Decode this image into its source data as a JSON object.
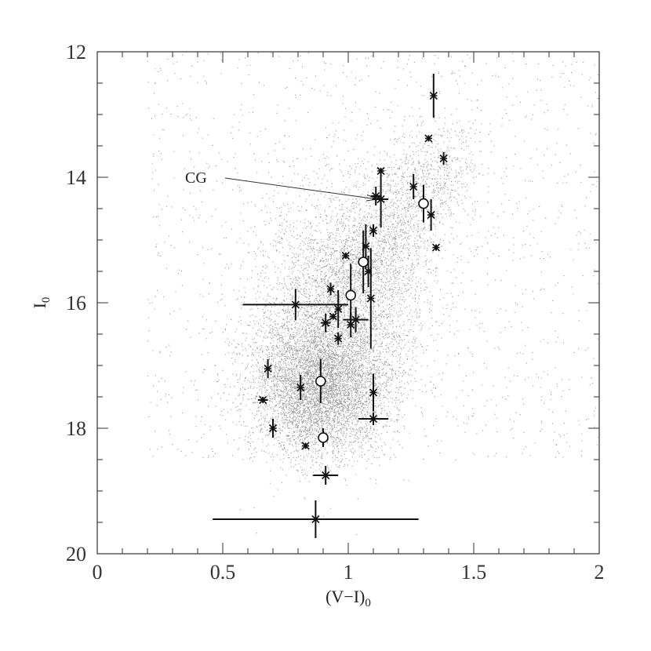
{
  "chart_data": {
    "type": "scatter",
    "title": "",
    "xlabel": "(V−I)",
    "xlabel_sub": "0",
    "ylabel": "I",
    "ylabel_sub": "0",
    "xlim": [
      0,
      2
    ],
    "ylim": [
      12,
      20
    ],
    "y_inverted": true,
    "x_tick_labels": [
      "0",
      "0.5",
      "1",
      "1.5",
      "2"
    ],
    "x_tick_values": [
      0,
      0.5,
      1,
      1.5,
      2
    ],
    "y_tick_labels": [
      "12",
      "14",
      "16",
      "18",
      "20"
    ],
    "y_tick_values": [
      12,
      14,
      16,
      18,
      20
    ],
    "grid": false,
    "annotation": {
      "text": "CG",
      "points_to": [
        1.14,
        14.35
      ]
    },
    "background_field": {
      "description_color": "#9a9a9a",
      "center": [
        0.92,
        17.4
      ]
    },
    "series": [
      {
        "marker": "cross",
        "points": [
          {
            "x": 1.34,
            "y": 12.7,
            "ex": 0.0,
            "ey": 0.35
          },
          {
            "x": 1.32,
            "y": 13.38,
            "ex": 0.0,
            "ey": 0.05
          },
          {
            "x": 1.38,
            "y": 13.7,
            "ex": 0.0,
            "ey": 0.1
          },
          {
            "x": 1.13,
            "y": 13.9,
            "ex": 0.0,
            "ey": 0.05
          },
          {
            "x": 1.26,
            "y": 14.15,
            "ex": 0.0,
            "ey": 0.2
          },
          {
            "x": 1.11,
            "y": 14.3,
            "ex": 0.02,
            "ey": 0.15
          },
          {
            "x": 1.13,
            "y": 14.35,
            "ex": 0.03,
            "ey": 0.45
          },
          {
            "x": 1.33,
            "y": 14.6,
            "ex": 0.0,
            "ey": 0.25
          },
          {
            "x": 1.1,
            "y": 14.85,
            "ex": 0.0,
            "ey": 0.1
          },
          {
            "x": 1.07,
            "y": 15.1,
            "ex": 0.0,
            "ey": 0.35
          },
          {
            "x": 1.35,
            "y": 15.12,
            "ex": 0.0,
            "ey": 0.05
          },
          {
            "x": 0.99,
            "y": 15.25,
            "ex": 0.0,
            "ey": 0.05
          },
          {
            "x": 1.08,
            "y": 15.5,
            "ex": 0.0,
            "ey": 0.25
          },
          {
            "x": 0.93,
            "y": 15.78,
            "ex": 0.0,
            "ey": 0.1
          },
          {
            "x": 1.09,
            "y": 15.93,
            "ex": 0.0,
            "ey": 0.8
          },
          {
            "x": 0.79,
            "y": 16.03,
            "ex": 0.21,
            "ey": 0.25
          },
          {
            "x": 0.96,
            "y": 16.1,
            "ex": 0.0,
            "ey": 0.3
          },
          {
            "x": 0.94,
            "y": 16.22,
            "ex": 0.0,
            "ey": 0.05
          },
          {
            "x": 0.91,
            "y": 16.32,
            "ex": 0.02,
            "ey": 0.15
          },
          {
            "x": 1.03,
            "y": 16.27,
            "ex": 0.05,
            "ey": 0.2
          },
          {
            "x": 1.01,
            "y": 16.35,
            "ex": 0.0,
            "ey": 0.2
          },
          {
            "x": 0.96,
            "y": 16.57,
            "ex": 0.0,
            "ey": 0.1
          },
          {
            "x": 0.68,
            "y": 17.05,
            "ex": 0.0,
            "ey": 0.15
          },
          {
            "x": 0.81,
            "y": 17.35,
            "ex": 0.0,
            "ey": 0.2
          },
          {
            "x": 1.1,
            "y": 17.43,
            "ex": 0.0,
            "ey": 0.3
          },
          {
            "x": 0.66,
            "y": 17.55,
            "ex": 0.02,
            "ey": 0.05
          },
          {
            "x": 1.1,
            "y": 17.85,
            "ex": 0.06,
            "ey": 0.1
          },
          {
            "x": 0.7,
            "y": 18.0,
            "ex": 0.0,
            "ey": 0.15
          },
          {
            "x": 0.83,
            "y": 18.28,
            "ex": 0.0,
            "ey": 0.05
          },
          {
            "x": 0.91,
            "y": 18.75,
            "ex": 0.05,
            "ey": 0.15
          },
          {
            "x": 0.87,
            "y": 19.45,
            "ex": 0.41,
            "ey": 0.3
          }
        ]
      },
      {
        "marker": "circle",
        "points": [
          {
            "x": 1.3,
            "y": 14.42,
            "ex": 0.0,
            "ey": 0.3
          },
          {
            "x": 1.06,
            "y": 15.35,
            "ex": 0.0,
            "ey": 0.5
          },
          {
            "x": 1.01,
            "y": 15.88,
            "ex": 0.0,
            "ey": 0.5
          },
          {
            "x": 0.89,
            "y": 17.25,
            "ex": 0.0,
            "ey": 0.35
          },
          {
            "x": 0.9,
            "y": 18.15,
            "ex": 0.0,
            "ey": 0.15
          }
        ]
      }
    ]
  }
}
